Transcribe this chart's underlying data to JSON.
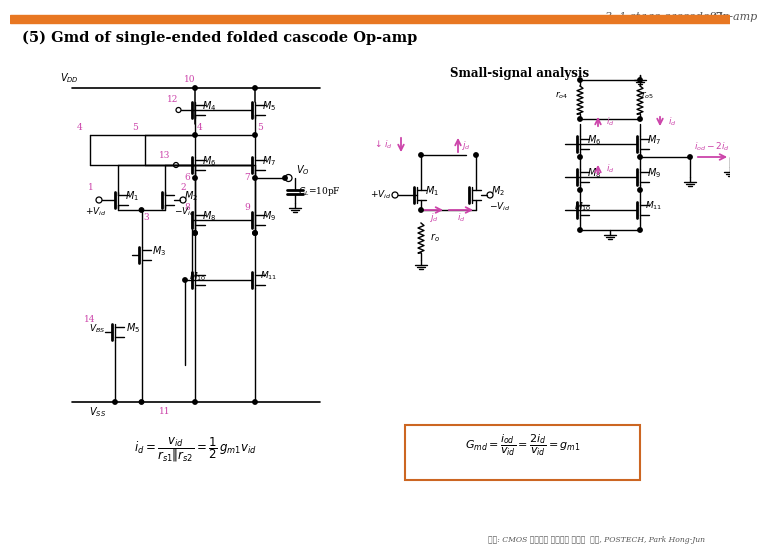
{
  "title_text": "3. 1-stage cascode Op-amp",
  "page_number": "97",
  "subtitle": "(5) Gmd of single-ended folded cascode Op-amp",
  "header_bar_color": "#E87722",
  "background_color": "#FFFFFF",
  "title_color": "#555555",
  "subtitle_color": "#000000",
  "pink_color": "#CC44AA",
  "small_signal_label": "Small-signal analysis",
  "footer_text": "참조: CMOS 아날로그 집적회로 설계론  저자, POSTECH, Park Hong-Jun"
}
